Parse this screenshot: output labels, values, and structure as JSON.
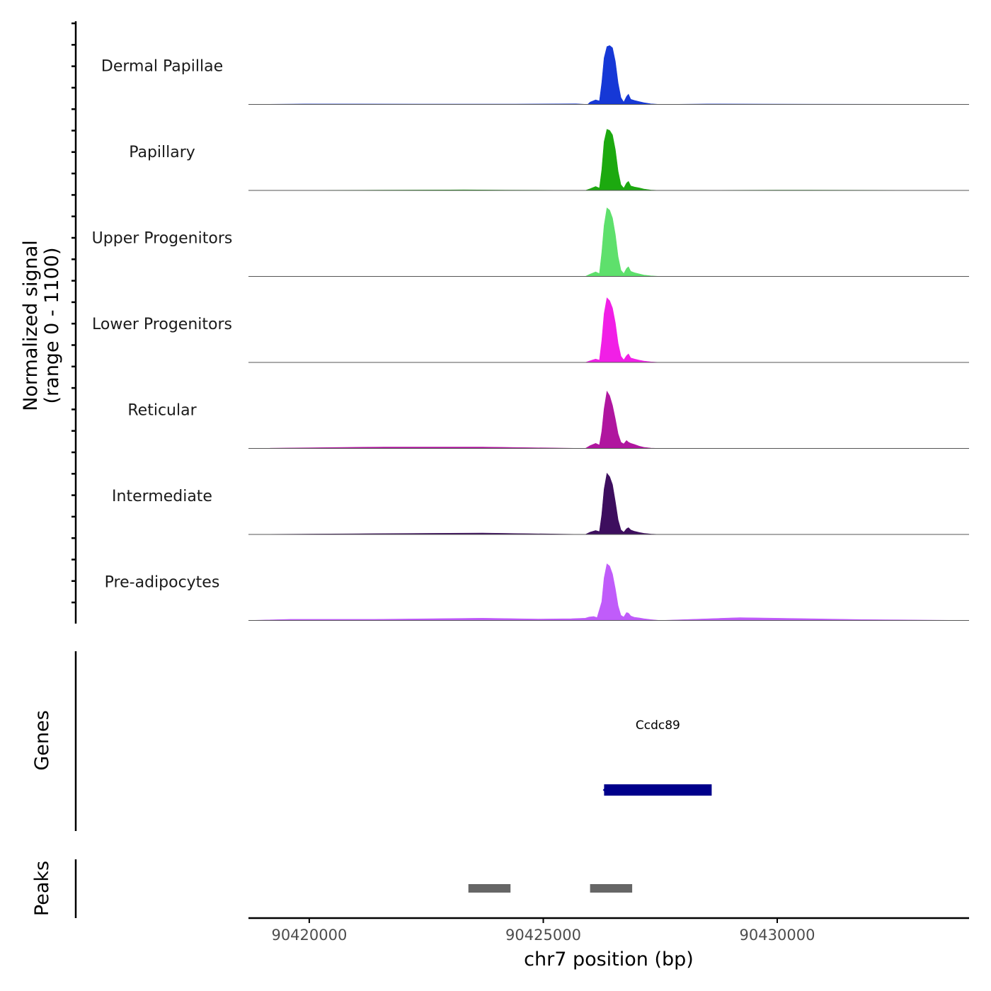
{
  "chart_data": {
    "type": "area",
    "title": "",
    "ylabel_line1": "Normalized signal",
    "ylabel_line2": "(range 0 - 1100)",
    "ylim": [
      0,
      1100
    ],
    "xlabel": "chr7 position (bp)",
    "xlim": [
      90418700,
      90434100
    ],
    "xticks": [
      90420000,
      90425000,
      90430000
    ],
    "xtick_labels": [
      "90420000",
      "90425000",
      "90430000"
    ],
    "tracks": [
      {
        "name": "Dermal Papillae",
        "color": "#1638D6",
        "points": [
          [
            90418700,
            0
          ],
          [
            90419900,
            8
          ],
          [
            90422400,
            6
          ],
          [
            90423500,
            5
          ],
          [
            90424400,
            6
          ],
          [
            90425700,
            10
          ],
          [
            90425950,
            0
          ],
          [
            90426000,
            40
          ],
          [
            90426120,
            80
          ],
          [
            90426200,
            60
          ],
          [
            90426250,
            380
          ],
          [
            90426300,
            820
          ],
          [
            90426360,
            1020
          ],
          [
            90426420,
            1040
          ],
          [
            90426480,
            1000
          ],
          [
            90426540,
            760
          ],
          [
            90426600,
            380
          ],
          [
            90426660,
            120
          ],
          [
            90426720,
            40
          ],
          [
            90426780,
            140
          ],
          [
            90426820,
            180
          ],
          [
            90426870,
            90
          ],
          [
            90426950,
            70
          ],
          [
            90427050,
            50
          ],
          [
            90427150,
            30
          ],
          [
            90427300,
            10
          ],
          [
            90427500,
            0
          ],
          [
            90428500,
            8
          ],
          [
            90434100,
            0
          ]
        ]
      },
      {
        "name": "Papillary",
        "color": "#1CA90F",
        "points": [
          [
            90418700,
            0
          ],
          [
            90421500,
            5
          ],
          [
            90423300,
            10
          ],
          [
            90424200,
            6
          ],
          [
            90425900,
            0
          ],
          [
            90426000,
            30
          ],
          [
            90426120,
            70
          ],
          [
            90426200,
            40
          ],
          [
            90426250,
            360
          ],
          [
            90426300,
            860
          ],
          [
            90426360,
            1080
          ],
          [
            90426420,
            1060
          ],
          [
            90426480,
            980
          ],
          [
            90426540,
            720
          ],
          [
            90426600,
            340
          ],
          [
            90426660,
            100
          ],
          [
            90426720,
            40
          ],
          [
            90426780,
            130
          ],
          [
            90426820,
            160
          ],
          [
            90426870,
            80
          ],
          [
            90426950,
            60
          ],
          [
            90427050,
            45
          ],
          [
            90427150,
            25
          ],
          [
            90427300,
            8
          ],
          [
            90427500,
            0
          ],
          [
            90430000,
            6
          ],
          [
            90434100,
            0
          ]
        ]
      },
      {
        "name": "Upper Progenitors",
        "color": "#5EE06C",
        "points": [
          [
            90418700,
            0
          ],
          [
            90425900,
            0
          ],
          [
            90426000,
            40
          ],
          [
            90426120,
            80
          ],
          [
            90426200,
            50
          ],
          [
            90426250,
            420
          ],
          [
            90426300,
            900
          ],
          [
            90426360,
            1210
          ],
          [
            90426420,
            1170
          ],
          [
            90426480,
            1030
          ],
          [
            90426540,
            740
          ],
          [
            90426600,
            350
          ],
          [
            90426660,
            110
          ],
          [
            90426720,
            50
          ],
          [
            90426780,
            140
          ],
          [
            90426820,
            170
          ],
          [
            90426870,
            90
          ],
          [
            90426950,
            65
          ],
          [
            90427050,
            45
          ],
          [
            90427150,
            25
          ],
          [
            90427300,
            10
          ],
          [
            90427500,
            0
          ],
          [
            90434100,
            0
          ]
        ]
      },
      {
        "name": "Lower Progenitors",
        "color": "#F11FE6",
        "points": [
          [
            90418700,
            0
          ],
          [
            90425900,
            0
          ],
          [
            90426000,
            30
          ],
          [
            90426120,
            60
          ],
          [
            90426200,
            40
          ],
          [
            90426250,
            380
          ],
          [
            90426300,
            860
          ],
          [
            90426360,
            1140
          ],
          [
            90426420,
            1090
          ],
          [
            90426480,
            960
          ],
          [
            90426540,
            700
          ],
          [
            90426600,
            340
          ],
          [
            90426660,
            110
          ],
          [
            90426720,
            45
          ],
          [
            90426780,
            120
          ],
          [
            90426820,
            150
          ],
          [
            90426870,
            80
          ],
          [
            90426950,
            60
          ],
          [
            90427050,
            40
          ],
          [
            90427150,
            25
          ],
          [
            90427300,
            10
          ],
          [
            90427500,
            0
          ],
          [
            90434100,
            0
          ]
        ]
      },
      {
        "name": "Reticular",
        "color": "#B0169F",
        "points": [
          [
            90418700,
            0
          ],
          [
            90421600,
            25
          ],
          [
            90423700,
            25
          ],
          [
            90425900,
            0
          ],
          [
            90426000,
            50
          ],
          [
            90426120,
            90
          ],
          [
            90426200,
            60
          ],
          [
            90426250,
            300
          ],
          [
            90426300,
            700
          ],
          [
            90426360,
            1010
          ],
          [
            90426420,
            930
          ],
          [
            90426480,
            760
          ],
          [
            90426540,
            520
          ],
          [
            90426600,
            260
          ],
          [
            90426660,
            110
          ],
          [
            90426720,
            80
          ],
          [
            90426780,
            140
          ],
          [
            90426820,
            110
          ],
          [
            90426870,
            90
          ],
          [
            90426950,
            70
          ],
          [
            90427050,
            40
          ],
          [
            90427150,
            20
          ],
          [
            90427300,
            6
          ],
          [
            90427500,
            0
          ],
          [
            90434100,
            0
          ]
        ]
      },
      {
        "name": "Intermediate",
        "color": "#3D0E5E",
        "points": [
          [
            90418700,
            0
          ],
          [
            90421600,
            15
          ],
          [
            90423700,
            25
          ],
          [
            90425900,
            0
          ],
          [
            90426000,
            40
          ],
          [
            90426120,
            70
          ],
          [
            90426200,
            50
          ],
          [
            90426250,
            350
          ],
          [
            90426300,
            800
          ],
          [
            90426360,
            1080
          ],
          [
            90426420,
            1020
          ],
          [
            90426480,
            880
          ],
          [
            90426540,
            580
          ],
          [
            90426600,
            260
          ],
          [
            90426660,
            80
          ],
          [
            90426720,
            40
          ],
          [
            90426780,
            100
          ],
          [
            90426820,
            120
          ],
          [
            90426870,
            80
          ],
          [
            90426950,
            55
          ],
          [
            90427050,
            35
          ],
          [
            90427150,
            20
          ],
          [
            90427300,
            8
          ],
          [
            90427500,
            0
          ],
          [
            90434100,
            0
          ]
        ]
      },
      {
        "name": "Pre-adipocytes",
        "color": "#C05CFA",
        "points": [
          [
            90418700,
            0
          ],
          [
            90419600,
            20
          ],
          [
            90420200,
            20
          ],
          [
            90421400,
            20
          ],
          [
            90423700,
            40
          ],
          [
            90424900,
            25
          ],
          [
            90425600,
            30
          ],
          [
            90425900,
            40
          ],
          [
            90425980,
            60
          ],
          [
            90426080,
            70
          ],
          [
            90426150,
            50
          ],
          [
            90426250,
            330
          ],
          [
            90426300,
            750
          ],
          [
            90426360,
            1000
          ],
          [
            90426420,
            960
          ],
          [
            90426480,
            820
          ],
          [
            90426540,
            560
          ],
          [
            90426600,
            260
          ],
          [
            90426660,
            90
          ],
          [
            90426720,
            60
          ],
          [
            90426780,
            140
          ],
          [
            90426820,
            130
          ],
          [
            90426870,
            80
          ],
          [
            90426950,
            55
          ],
          [
            90427050,
            45
          ],
          [
            90427150,
            30
          ],
          [
            90427300,
            15
          ],
          [
            90427500,
            0
          ],
          [
            90429200,
            50
          ],
          [
            90431800,
            15
          ],
          [
            90434100,
            0
          ]
        ]
      }
    ],
    "genes": {
      "axis_label": "Genes",
      "color": "#00008B",
      "items": [
        {
          "name": "Ccdc89",
          "start": 90426300,
          "end": 90428600,
          "strand": "-"
        }
      ]
    },
    "peaks": {
      "axis_label": "Peaks",
      "color": "#666666",
      "items": [
        {
          "start": 90423400,
          "end": 90424300
        },
        {
          "start": 90426000,
          "end": 90426900
        }
      ]
    }
  }
}
